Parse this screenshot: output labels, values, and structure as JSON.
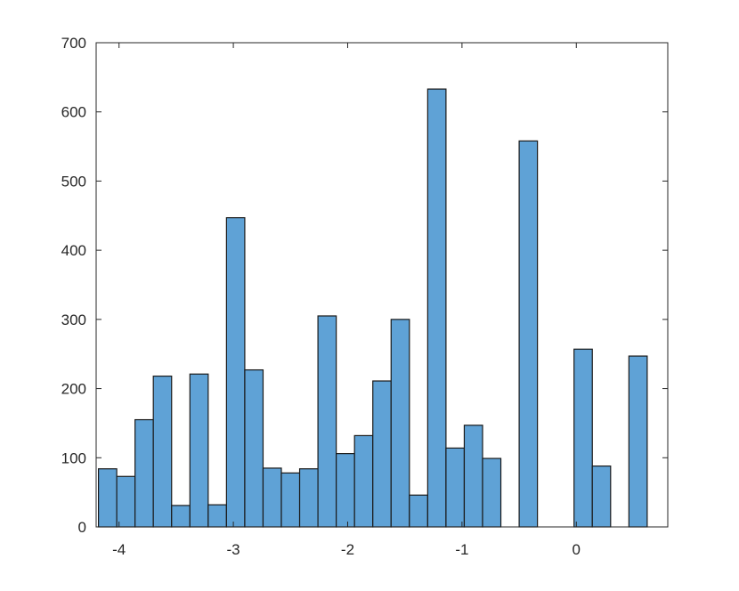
{
  "chart_data": {
    "type": "bar",
    "histogram": true,
    "title": "",
    "xlabel": "",
    "ylabel": "",
    "xlim": [
      -4.2,
      0.8
    ],
    "ylim": [
      0,
      700
    ],
    "xticks": [
      -4,
      -3,
      -2,
      -1,
      0
    ],
    "xtick_labels": [
      "-4",
      "-3",
      "-2",
      "-1",
      "0"
    ],
    "yticks": [
      0,
      100,
      200,
      300,
      400,
      500,
      600,
      700
    ],
    "ytick_labels": [
      "0",
      "100",
      "200",
      "300",
      "400",
      "500",
      "600",
      "700"
    ],
    "bin_width": 0.16,
    "bins": [
      {
        "x0": -4.18,
        "count": 84
      },
      {
        "x0": -4.02,
        "count": 73
      },
      {
        "x0": -3.86,
        "count": 155
      },
      {
        "x0": -3.7,
        "count": 218
      },
      {
        "x0": -3.54,
        "count": 31
      },
      {
        "x0": -3.38,
        "count": 221
      },
      {
        "x0": -3.22,
        "count": 32
      },
      {
        "x0": -3.06,
        "count": 447
      },
      {
        "x0": -2.9,
        "count": 227
      },
      {
        "x0": -2.74,
        "count": 85
      },
      {
        "x0": -2.58,
        "count": 78
      },
      {
        "x0": -2.42,
        "count": 84
      },
      {
        "x0": -2.26,
        "count": 305
      },
      {
        "x0": -2.1,
        "count": 106
      },
      {
        "x0": -1.94,
        "count": 132
      },
      {
        "x0": -1.78,
        "count": 211
      },
      {
        "x0": -1.62,
        "count": 300
      },
      {
        "x0": -1.46,
        "count": 46
      },
      {
        "x0": -1.3,
        "count": 633
      },
      {
        "x0": -1.14,
        "count": 114
      },
      {
        "x0": -0.98,
        "count": 147
      },
      {
        "x0": -0.82,
        "count": 99
      },
      {
        "x0": -0.66,
        "count": 0
      },
      {
        "x0": -0.5,
        "count": 558
      },
      {
        "x0": -0.34,
        "count": 0
      },
      {
        "x0": -0.18,
        "count": 0
      },
      {
        "x0": -0.02,
        "count": 257
      },
      {
        "x0": 0.14,
        "count": 88
      },
      {
        "x0": 0.3,
        "count": 0
      },
      {
        "x0": 0.46,
        "count": 247
      }
    ],
    "colors": {
      "bar_fill": "#5fa2d6",
      "bar_edge": "#1a1a1a",
      "axis": "#262626"
    },
    "grid": false,
    "box": true
  }
}
